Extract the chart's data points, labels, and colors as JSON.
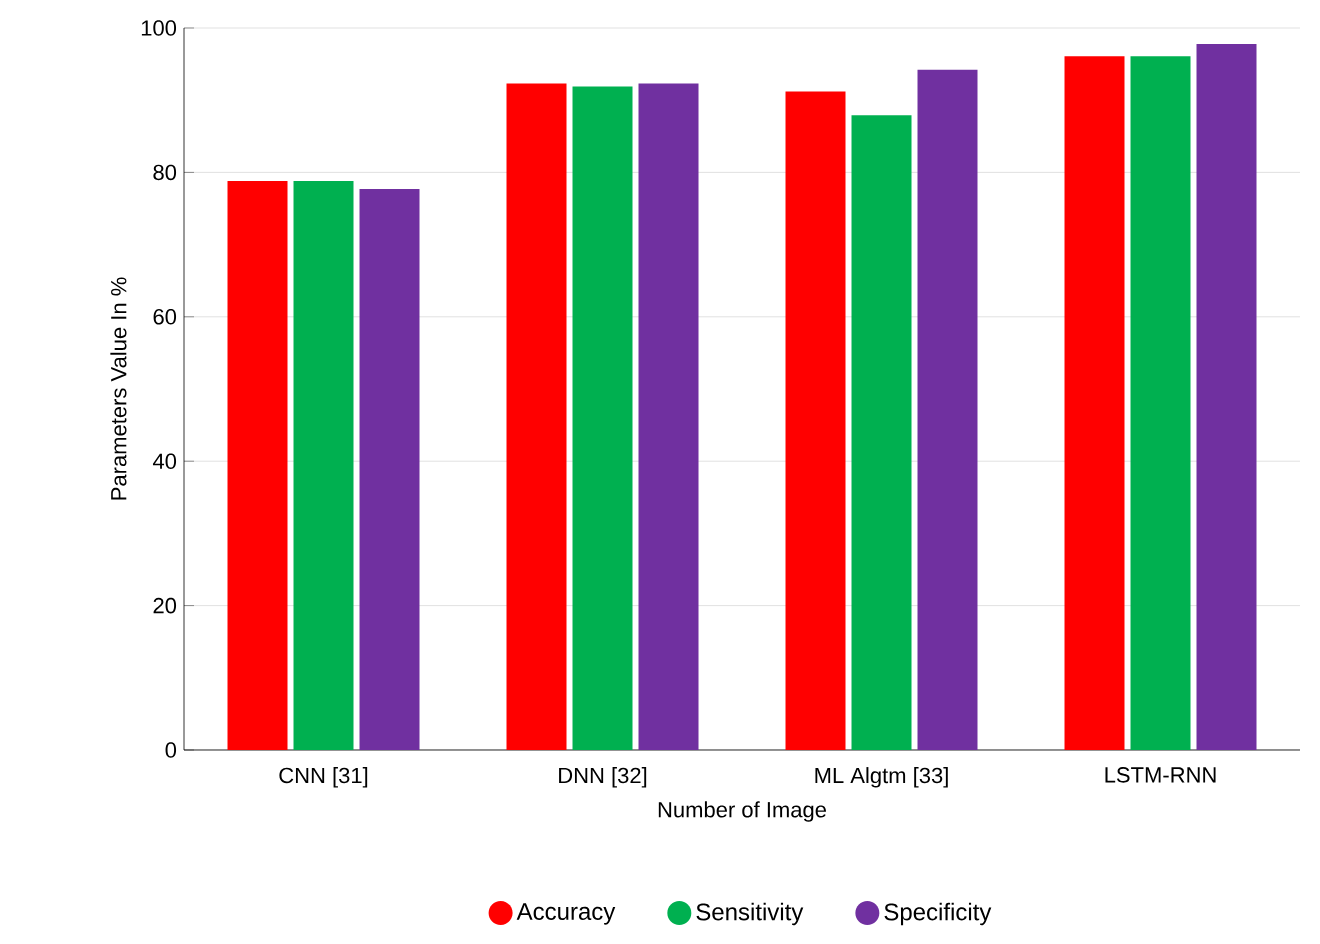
{
  "chart_data": {
    "type": "bar",
    "xlabel": "Number of Image",
    "ylabel": "Parameters Value In %",
    "categories": [
      "CNN [31]",
      "DNN [32]",
      "ML Algtm [33]",
      "LSTM-RNN"
    ],
    "series": [
      {
        "name": "Accuracy",
        "color": "#ff0000",
        "values": [
          78.8,
          92.3,
          91.2,
          96.1
        ]
      },
      {
        "name": "Sensitivity",
        "color": "#00b050",
        "values": [
          78.8,
          91.9,
          87.9,
          96.1
        ]
      },
      {
        "name": "Specificity",
        "color": "#7030a0",
        "values": [
          77.7,
          92.3,
          94.2,
          97.8
        ]
      }
    ],
    "ylim": [
      0,
      100
    ],
    "yticks": [
      0,
      20,
      40,
      60,
      80,
      100
    ],
    "grid": "y",
    "legend": "bottom"
  }
}
